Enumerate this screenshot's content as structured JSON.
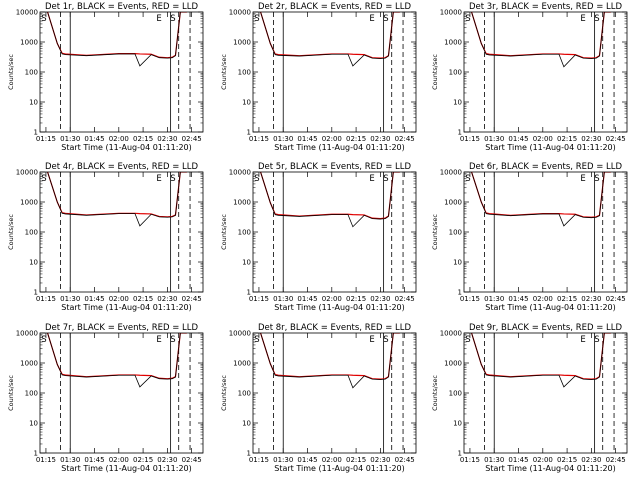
{
  "page": {
    "xlabel": "Start Time (11-Aug-04 01:11:20)",
    "ylabel": "Counts/sec",
    "colors": {
      "events": "#000000",
      "lld": "#e00000",
      "axes": "#000000",
      "background": "#ffffff"
    }
  },
  "chart_data": [
    {
      "type": "line",
      "title": "Det 1r, BLACK = Events, RED = LLD",
      "xlabel": "Start Time (11-Aug-04 01:11:20)",
      "ylabel": "Counts/sec",
      "xlim": [
        "01:11:20",
        "02:52:00"
      ],
      "ylim": [
        1,
        10000
      ],
      "yscale": "log",
      "x_ticks": [
        "01:15",
        "01:30",
        "01:45",
        "02:00",
        "02:15",
        "02:30",
        "02:45"
      ],
      "y_ticks": [
        "1",
        "10",
        "100",
        "1000",
        "10000"
      ],
      "annotations": [
        "S",
        "E",
        "S"
      ],
      "series": [
        {
          "name": "Events",
          "color": "#000000",
          "times": [
            "01:16",
            "01:22",
            "01:25",
            "01:27",
            "01:40",
            "02:00",
            "02:10",
            "02:13",
            "02:20",
            "02:25",
            "02:30",
            "02:33",
            "02:35",
            "02:38",
            "02:40",
            "02:42"
          ],
          "values": [
            10000,
            900,
            400,
            380,
            350,
            400,
            400,
            160,
            380,
            300,
            290,
            300,
            350,
            10000,
            10000,
            10000
          ]
        },
        {
          "name": "LLD",
          "color": "#e00000",
          "times": [
            "01:16",
            "01:22",
            "01:25",
            "01:27",
            "01:40",
            "02:00",
            "02:10",
            "02:13",
            "02:20",
            "02:25",
            "02:30",
            "02:33",
            "02:35",
            "02:38",
            "02:40",
            "02:42"
          ],
          "values": [
            10000,
            900,
            420,
            400,
            360,
            410,
            410,
            400,
            390,
            310,
            300,
            310,
            360,
            10000,
            10000,
            10000
          ]
        }
      ]
    },
    {
      "type": "line",
      "title": "Det 2r, BLACK = Events, RED = LLD",
      "xlabel": "Start Time (11-Aug-04 01:11:20)",
      "ylabel": "Counts/sec",
      "xlim": [
        "01:11:20",
        "02:52:00"
      ],
      "ylim": [
        1,
        10000
      ],
      "yscale": "log",
      "x_ticks": [
        "01:15",
        "01:30",
        "01:45",
        "02:00",
        "02:15",
        "02:30",
        "02:45"
      ],
      "y_ticks": [
        "1",
        "10",
        "100",
        "1000",
        "10000"
      ],
      "annotations": [
        "S",
        "E",
        "S"
      ],
      "series": [
        {
          "name": "Events",
          "color": "#000000",
          "times": [
            "01:16",
            "01:22",
            "01:25",
            "01:27",
            "01:40",
            "02:00",
            "02:10",
            "02:13",
            "02:20",
            "02:25",
            "02:30",
            "02:33",
            "02:35",
            "02:38",
            "02:40",
            "02:42"
          ],
          "values": [
            10000,
            900,
            380,
            360,
            340,
            390,
            390,
            160,
            370,
            290,
            280,
            290,
            340,
            10000,
            10000,
            10000
          ]
        },
        {
          "name": "LLD",
          "color": "#e00000",
          "times": [
            "01:16",
            "01:22",
            "01:25",
            "01:27",
            "01:40",
            "02:00",
            "02:10",
            "02:13",
            "02:20",
            "02:25",
            "02:30",
            "02:33",
            "02:35",
            "02:38",
            "02:40",
            "02:42"
          ],
          "values": [
            10000,
            900,
            400,
            380,
            350,
            400,
            400,
            390,
            380,
            300,
            290,
            300,
            350,
            10000,
            10000,
            10000
          ]
        }
      ]
    },
    {
      "type": "line",
      "title": "Det 3r, BLACK = Events, RED = LLD",
      "xlabel": "Start Time (11-Aug-04 01:11:20)",
      "ylabel": "Counts/sec",
      "xlim": [
        "01:11:20",
        "02:52:00"
      ],
      "ylim": [
        1,
        10000
      ],
      "yscale": "log",
      "x_ticks": [
        "01:15",
        "01:30",
        "01:45",
        "02:00",
        "02:15",
        "02:30",
        "02:45"
      ],
      "y_ticks": [
        "1",
        "10",
        "100",
        "1000",
        "10000"
      ],
      "annotations": [
        "S",
        "E",
        "S"
      ],
      "series": [
        {
          "name": "Events",
          "color": "#000000",
          "times": [
            "01:16",
            "01:22",
            "01:25",
            "01:27",
            "01:40",
            "02:00",
            "02:10",
            "02:13",
            "02:20",
            "02:25",
            "02:30",
            "02:33",
            "02:35",
            "02:38",
            "02:40",
            "02:42"
          ],
          "values": [
            10000,
            900,
            390,
            370,
            340,
            390,
            390,
            150,
            370,
            290,
            280,
            290,
            340,
            10000,
            10000,
            10000
          ]
        },
        {
          "name": "LLD",
          "color": "#e00000",
          "times": [
            "01:16",
            "01:22",
            "01:25",
            "01:27",
            "01:40",
            "02:00",
            "02:10",
            "02:13",
            "02:20",
            "02:25",
            "02:30",
            "02:33",
            "02:35",
            "02:38",
            "02:40",
            "02:42"
          ],
          "values": [
            10000,
            900,
            410,
            390,
            350,
            400,
            400,
            390,
            380,
            300,
            290,
            300,
            350,
            10000,
            10000,
            10000
          ]
        }
      ]
    },
    {
      "type": "line",
      "title": "Det 4r, BLACK = Events, RED = LLD",
      "xlabel": "Start Time (11-Aug-04 01:11:20)",
      "ylabel": "Counts/sec",
      "xlim": [
        "01:11:20",
        "02:52:00"
      ],
      "ylim": [
        1,
        10000
      ],
      "yscale": "log",
      "x_ticks": [
        "01:15",
        "01:30",
        "01:45",
        "02:00",
        "02:15",
        "02:30",
        "02:45"
      ],
      "y_ticks": [
        "1",
        "10",
        "100",
        "1000",
        "10000"
      ],
      "annotations": [
        "S",
        "E",
        "S"
      ],
      "series": [
        {
          "name": "Events",
          "color": "#000000",
          "times": [
            "01:16",
            "01:22",
            "01:25",
            "01:27",
            "01:40",
            "02:00",
            "02:10",
            "02:13",
            "02:20",
            "02:25",
            "02:30",
            "02:33",
            "02:35",
            "02:38",
            "02:40",
            "02:42"
          ],
          "values": [
            10000,
            1000,
            420,
            400,
            360,
            410,
            410,
            160,
            390,
            320,
            310,
            320,
            360,
            10000,
            10000,
            10000
          ]
        },
        {
          "name": "LLD",
          "color": "#e00000",
          "times": [
            "01:16",
            "01:22",
            "01:25",
            "01:27",
            "01:40",
            "02:00",
            "02:10",
            "02:13",
            "02:20",
            "02:25",
            "02:30",
            "02:33",
            "02:35",
            "02:38",
            "02:40",
            "02:42"
          ],
          "values": [
            10000,
            1000,
            440,
            420,
            370,
            420,
            420,
            410,
            400,
            330,
            320,
            330,
            370,
            10000,
            10000,
            10000
          ]
        }
      ]
    },
    {
      "type": "line",
      "title": "Det 5r, BLACK = Events, RED = LLD",
      "xlabel": "Start Time (11-Aug-04 01:11:20)",
      "ylabel": "Counts/sec",
      "xlim": [
        "01:11:20",
        "02:52:00"
      ],
      "ylim": [
        1,
        10000
      ],
      "yscale": "log",
      "x_ticks": [
        "01:15",
        "01:30",
        "01:45",
        "02:00",
        "02:15",
        "02:30",
        "02:45"
      ],
      "y_ticks": [
        "1",
        "10",
        "100",
        "1000",
        "10000"
      ],
      "annotations": [
        "S",
        "E",
        "S"
      ],
      "series": [
        {
          "name": "Events",
          "color": "#000000",
          "times": [
            "01:16",
            "01:22",
            "01:25",
            "01:27",
            "01:40",
            "02:00",
            "02:10",
            "02:13",
            "02:20",
            "02:25",
            "02:30",
            "02:33",
            "02:35",
            "02:38",
            "02:40",
            "02:42"
          ],
          "values": [
            10000,
            950,
            380,
            360,
            330,
            380,
            380,
            150,
            360,
            280,
            270,
            280,
            330,
            10000,
            10000,
            10000
          ]
        },
        {
          "name": "LLD",
          "color": "#e00000",
          "times": [
            "01:16",
            "01:22",
            "01:25",
            "01:27",
            "01:40",
            "02:00",
            "02:10",
            "02:13",
            "02:20",
            "02:25",
            "02:30",
            "02:33",
            "02:35",
            "02:38",
            "02:40",
            "02:42"
          ],
          "values": [
            10000,
            950,
            400,
            380,
            340,
            390,
            390,
            380,
            370,
            290,
            280,
            290,
            340,
            10000,
            10000,
            10000
          ]
        }
      ]
    },
    {
      "type": "line",
      "title": "Det 6r, BLACK = Events, RED = LLD",
      "xlabel": "Start Time (11-Aug-04 01:11:20)",
      "ylabel": "Counts/sec",
      "xlim": [
        "01:11:20",
        "02:52:00"
      ],
      "ylim": [
        1,
        10000
      ],
      "yscale": "log",
      "x_ticks": [
        "01:15",
        "01:30",
        "01:45",
        "02:00",
        "02:15",
        "02:30",
        "02:45"
      ],
      "y_ticks": [
        "1",
        "10",
        "100",
        "1000",
        "10000"
      ],
      "annotations": [
        "S",
        "E",
        "S"
      ],
      "series": [
        {
          "name": "Events",
          "color": "#000000",
          "times": [
            "01:16",
            "01:22",
            "01:25",
            "01:27",
            "01:40",
            "02:00",
            "02:10",
            "02:13",
            "02:20",
            "02:25",
            "02:30",
            "02:33",
            "02:35",
            "02:38",
            "02:40",
            "02:42"
          ],
          "values": [
            10000,
            1000,
            410,
            390,
            350,
            400,
            400,
            160,
            380,
            310,
            300,
            310,
            350,
            10000,
            10000,
            10000
          ]
        },
        {
          "name": "LLD",
          "color": "#e00000",
          "times": [
            "01:16",
            "01:22",
            "01:25",
            "01:27",
            "01:40",
            "02:00",
            "02:10",
            "02:13",
            "02:20",
            "02:25",
            "02:30",
            "02:33",
            "02:35",
            "02:38",
            "02:40",
            "02:42"
          ],
          "values": [
            10000,
            1000,
            430,
            410,
            360,
            410,
            410,
            400,
            390,
            320,
            310,
            320,
            360,
            10000,
            10000,
            10000
          ]
        }
      ]
    },
    {
      "type": "line",
      "title": "Det 7r, BLACK = Events, RED = LLD",
      "xlabel": "Start Time (11-Aug-04 01:11:20)",
      "ylabel": "Counts/sec",
      "xlim": [
        "01:11:20",
        "02:52:00"
      ],
      "ylim": [
        1,
        10000
      ],
      "yscale": "log",
      "x_ticks": [
        "01:15",
        "01:30",
        "01:45",
        "02:00",
        "02:15",
        "02:30",
        "02:45"
      ],
      "y_ticks": [
        "1",
        "10",
        "100",
        "1000",
        "10000"
      ],
      "annotations": [
        "S",
        "E",
        "S"
      ],
      "series": [
        {
          "name": "Events",
          "color": "#000000",
          "times": [
            "01:16",
            "01:22",
            "01:25",
            "01:27",
            "01:40",
            "02:00",
            "02:10",
            "02:13",
            "02:20",
            "02:25",
            "02:30",
            "02:33",
            "02:35",
            "02:38",
            "02:40",
            "02:42"
          ],
          "values": [
            10000,
            900,
            400,
            380,
            340,
            390,
            390,
            160,
            370,
            300,
            290,
            300,
            340,
            10000,
            10000,
            10000
          ]
        },
        {
          "name": "LLD",
          "color": "#e00000",
          "times": [
            "01:16",
            "01:22",
            "01:25",
            "01:27",
            "01:40",
            "02:00",
            "02:10",
            "02:13",
            "02:20",
            "02:25",
            "02:30",
            "02:33",
            "02:35",
            "02:38",
            "02:40",
            "02:42"
          ],
          "values": [
            10000,
            900,
            420,
            400,
            350,
            400,
            400,
            390,
            380,
            310,
            300,
            310,
            350,
            10000,
            10000,
            10000
          ]
        }
      ]
    },
    {
      "type": "line",
      "title": "Det 8r, BLACK = Events, RED = LLD",
      "xlabel": "Start Time (11-Aug-04 01:11:20)",
      "ylabel": "Counts/sec",
      "xlim": [
        "01:11:20",
        "02:52:00"
      ],
      "ylim": [
        1,
        10000
      ],
      "yscale": "log",
      "x_ticks": [
        "01:15",
        "01:30",
        "01:45",
        "02:00",
        "02:15",
        "02:30",
        "02:45"
      ],
      "y_ticks": [
        "1",
        "10",
        "100",
        "1000",
        "10000"
      ],
      "annotations": [
        "S",
        "E",
        "S"
      ],
      "series": [
        {
          "name": "Events",
          "color": "#000000",
          "times": [
            "01:16",
            "01:22",
            "01:25",
            "01:27",
            "01:40",
            "02:00",
            "02:10",
            "02:13",
            "02:20",
            "02:25",
            "02:30",
            "02:33",
            "02:35",
            "02:38",
            "02:40",
            "02:42"
          ],
          "values": [
            10000,
            950,
            390,
            370,
            340,
            390,
            390,
            150,
            370,
            290,
            280,
            290,
            340,
            10000,
            10000,
            10000
          ]
        },
        {
          "name": "LLD",
          "color": "#e00000",
          "times": [
            "01:16",
            "01:22",
            "01:25",
            "01:27",
            "01:40",
            "02:00",
            "02:10",
            "02:13",
            "02:20",
            "02:25",
            "02:30",
            "02:33",
            "02:35",
            "02:38",
            "02:40",
            "02:42"
          ],
          "values": [
            10000,
            950,
            410,
            390,
            350,
            400,
            400,
            390,
            380,
            300,
            290,
            300,
            350,
            10000,
            10000,
            10000
          ]
        }
      ]
    },
    {
      "type": "line",
      "title": "Det 9r, BLACK = Events, RED = LLD",
      "xlabel": "Start Time (11-Aug-04 01:11:20)",
      "ylabel": "Counts/sec",
      "xlim": [
        "01:11:20",
        "02:52:00"
      ],
      "ylim": [
        1,
        10000
      ],
      "yscale": "log",
      "x_ticks": [
        "01:15",
        "01:30",
        "01:45",
        "02:00",
        "02:15",
        "02:30",
        "02:45"
      ],
      "y_ticks": [
        "1",
        "10",
        "100",
        "1000",
        "10000"
      ],
      "annotations": [
        "S",
        "E",
        "S"
      ],
      "series": [
        {
          "name": "Events",
          "color": "#000000",
          "times": [
            "01:16",
            "01:22",
            "01:25",
            "01:27",
            "01:40",
            "02:00",
            "02:10",
            "02:13",
            "02:20",
            "02:25",
            "02:30",
            "02:33",
            "02:35",
            "02:38",
            "02:40",
            "02:42"
          ],
          "values": [
            10000,
            900,
            400,
            380,
            340,
            390,
            390,
            160,
            370,
            290,
            280,
            290,
            340,
            10000,
            10000,
            10000
          ]
        },
        {
          "name": "LLD",
          "color": "#e00000",
          "times": [
            "01:16",
            "01:22",
            "01:25",
            "01:27",
            "01:40",
            "02:00",
            "02:10",
            "02:13",
            "02:20",
            "02:25",
            "02:30",
            "02:33",
            "02:35",
            "02:38",
            "02:40",
            "02:42"
          ],
          "values": [
            10000,
            900,
            420,
            400,
            350,
            400,
            400,
            390,
            380,
            300,
            290,
            300,
            350,
            10000,
            10000,
            10000
          ]
        }
      ]
    }
  ]
}
